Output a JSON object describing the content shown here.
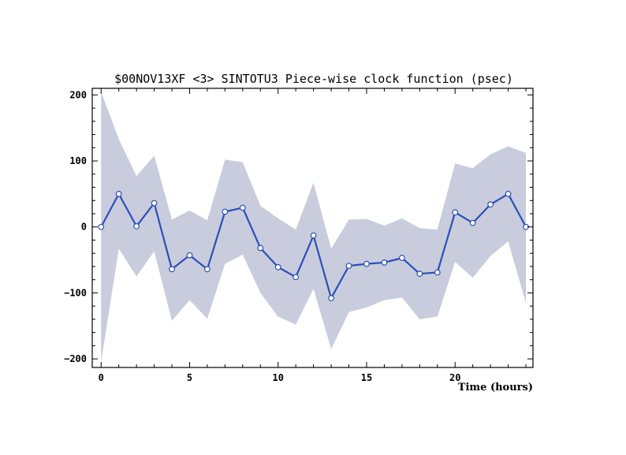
{
  "chart_data": {
    "type": "line",
    "title": "$00NOV13XF <3>  SINTOTU3  Piece-wise clock function (psec)",
    "xlabel": "Time (hours)",
    "ylabel": "",
    "xlim": [
      -0.5,
      24.4
    ],
    "ylim": [
      -213,
      210
    ],
    "x_ticks": [
      0,
      5,
      10,
      15,
      20
    ],
    "y_ticks": [
      -200,
      -100,
      0,
      100,
      200
    ],
    "y_tick_labels": [
      "−200",
      "−100",
      "0",
      "100",
      "200"
    ],
    "grid": false,
    "colors": {
      "line": "#2b4fb8",
      "band": "#c8ccdc",
      "marker_fill": "#ffffff"
    },
    "series": [
      {
        "x": [
          0,
          1,
          2,
          3,
          4,
          5,
          6,
          7,
          8,
          9,
          10,
          11,
          12,
          13,
          14,
          15,
          16,
          17,
          18,
          19,
          20,
          21,
          22,
          23,
          24
        ],
        "values": [
          0,
          50,
          1,
          36,
          -64,
          -43,
          -64,
          23,
          29,
          -32,
          -61,
          -76,
          -13,
          -108,
          -59,
          -56,
          -54,
          -47,
          -71,
          -69,
          22,
          6,
          34,
          50,
          0
        ],
        "upper": [
          205,
          133,
          77,
          108,
          11,
          25,
          10,
          102,
          98,
          32,
          13,
          -4,
          67,
          -33,
          11,
          12,
          2,
          13,
          -2,
          -4,
          96,
          89,
          110,
          122,
          112
        ],
        "lower": [
          -205,
          -33,
          -75,
          -37,
          -142,
          -111,
          -139,
          -56,
          -42,
          -100,
          -136,
          -148,
          -94,
          -185,
          -129,
          -122,
          -111,
          -107,
          -140,
          -136,
          -53,
          -77,
          -44,
          -22,
          -115
        ]
      }
    ]
  }
}
